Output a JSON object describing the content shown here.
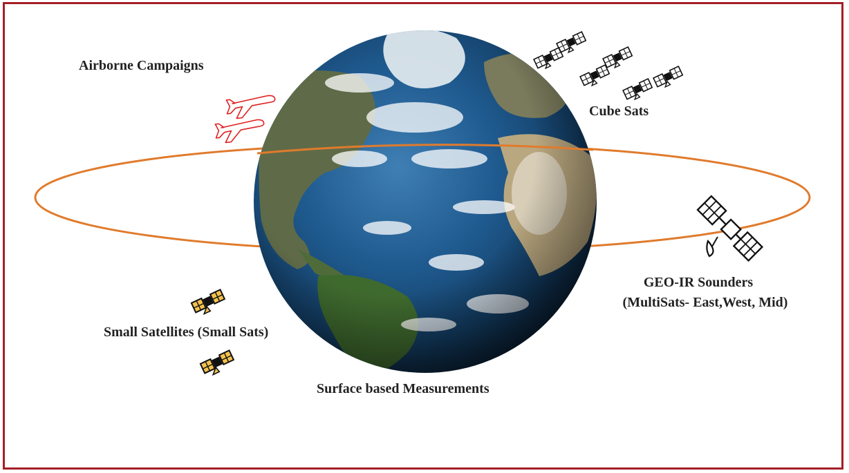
{
  "labels": {
    "airborne": "Airborne Campaigns",
    "cubesats": "Cube Sats",
    "geo_line1": "GEO-IR Sounders",
    "geo_line2": "(MultiSats- East,West, Mid)",
    "smallsats": "Small Satellites (Small Sats)",
    "surface": "Surface based Measurements"
  },
  "colors": {
    "frame": "#a31f25",
    "orbit": "#e07b2c",
    "airplane": "#e02020",
    "smallsat_fill": "#f2c14e"
  },
  "icons": {
    "airplane": "airplane-outline-icon",
    "cubesat": "satellite-icon",
    "geo": "satellite-dish-icon",
    "smallsat": "satellite-gold-icon",
    "earth": "globe-image"
  }
}
